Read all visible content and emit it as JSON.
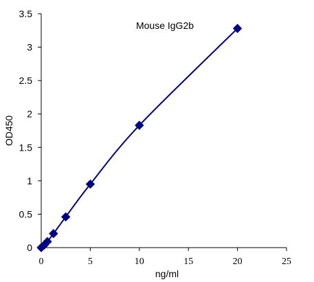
{
  "chart_data": {
    "type": "scatter",
    "title": "Mouse IgG2b",
    "xlabel": "ng/ml",
    "ylabel": "OD450",
    "xlim": [
      0,
      25
    ],
    "ylim": [
      0,
      3.5
    ],
    "x_ticks": [
      0,
      5,
      10,
      15,
      20,
      25
    ],
    "y_ticks": [
      0,
      0.5,
      1,
      1.5,
      2,
      2.5,
      3,
      3.5
    ],
    "x_tick_labels": [
      "0",
      "5",
      "10",
      "15",
      "20",
      "25"
    ],
    "y_tick_labels": [
      "0",
      "0.5",
      "1",
      "1.5",
      "2",
      "2.5",
      "3",
      "3.5"
    ],
    "grid": false,
    "series": [
      {
        "x": [
          0,
          0.3125,
          0.625,
          1.25,
          2.5,
          5,
          10,
          20
        ],
        "y": [
          0.0,
          0.04,
          0.09,
          0.21,
          0.46,
          0.95,
          1.83,
          3.28
        ],
        "marker": "diamond",
        "color": "#000080",
        "trendline": true
      }
    ]
  }
}
